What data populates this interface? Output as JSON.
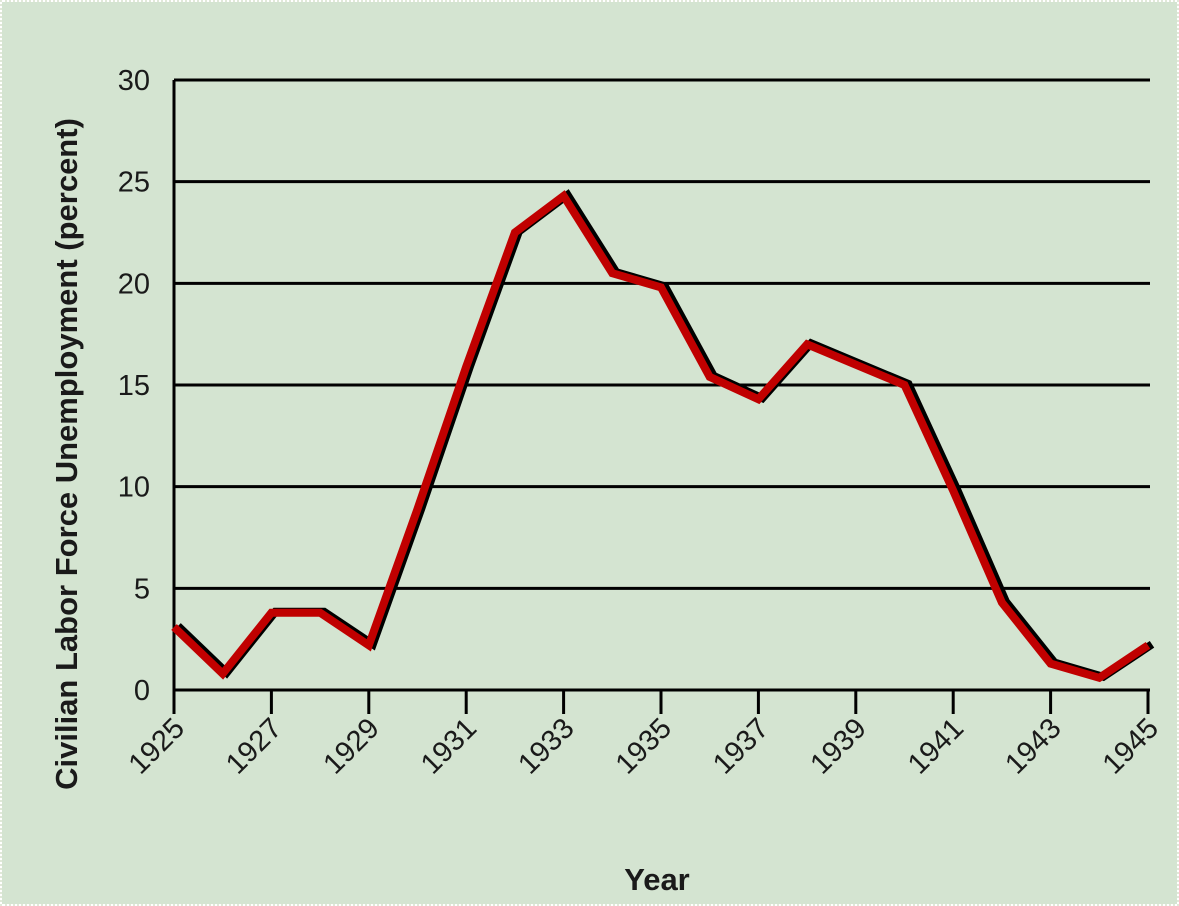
{
  "colors": {
    "background": "#d4e4d1",
    "line": "#c00000",
    "shadow": "#000000",
    "grid": "#000000"
  },
  "chart_data": {
    "type": "line",
    "title": "",
    "xlabel": "Year",
    "ylabel": "Civilian Labor Force Unemployment (percent)",
    "xlim": [
      1925,
      1945
    ],
    "ylim": [
      0,
      30
    ],
    "x_ticks": [
      "1925",
      "1927",
      "1929",
      "1931",
      "1933",
      "1935",
      "1937",
      "1939",
      "1941",
      "1943",
      "1945"
    ],
    "y_ticks": [
      "0",
      "5",
      "10",
      "15",
      "20",
      "25",
      "30"
    ],
    "grid": "horizontal",
    "series": [
      {
        "x": [
          1925,
          1926,
          1927,
          1928,
          1929,
          1930,
          1931,
          1932,
          1933,
          1934,
          1935,
          1936,
          1937,
          1938,
          1939,
          1940,
          1941,
          1942,
          1943,
          1944,
          1945
        ],
        "y": [
          3.1,
          0.8,
          3.8,
          3.8,
          2.2,
          8.9,
          15.9,
          22.5,
          24.3,
          20.5,
          19.8,
          15.4,
          14.3,
          17.0,
          16.0,
          15.0,
          9.8,
          4.3,
          1.3,
          0.6,
          2.2
        ]
      }
    ]
  }
}
